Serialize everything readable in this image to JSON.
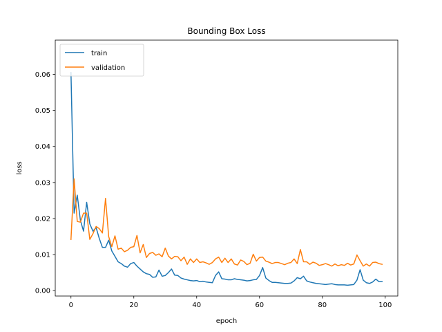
{
  "chart_data": {
    "type": "line",
    "title": "Bounding Box Loss",
    "xlabel": "epoch",
    "ylabel": "loss",
    "xlim": [
      -5,
      104
    ],
    "ylim": [
      -0.0015,
      0.0695
    ],
    "xticks": [
      0,
      20,
      40,
      60,
      80,
      100
    ],
    "yticks": [
      0.0,
      0.01,
      0.02,
      0.03,
      0.04,
      0.05,
      0.06
    ],
    "ytick_labels": [
      "0.00",
      "0.01",
      "0.02",
      "0.03",
      "0.04",
      "0.05",
      "0.06"
    ],
    "grid": false,
    "legend": "upper-left",
    "series": [
      {
        "name": "train",
        "color": "#1f77b4",
        "values": [
          0.0605,
          0.0215,
          0.0265,
          0.0195,
          0.0165,
          0.0245,
          0.0185,
          0.0165,
          0.0175,
          0.0145,
          0.012,
          0.012,
          0.014,
          0.011,
          0.0095,
          0.008,
          0.0075,
          0.0068,
          0.0065,
          0.0075,
          0.0078,
          0.0068,
          0.006,
          0.0052,
          0.0047,
          0.0045,
          0.0037,
          0.0038,
          0.0057,
          0.004,
          0.0042,
          0.005,
          0.006,
          0.0043,
          0.0042,
          0.0035,
          0.0032,
          0.003,
          0.0028,
          0.0027,
          0.0028,
          0.0025,
          0.0026,
          0.0024,
          0.0023,
          0.0022,
          0.0042,
          0.0052,
          0.0033,
          0.0032,
          0.003,
          0.003,
          0.0033,
          0.0031,
          0.003,
          0.0029,
          0.0027,
          0.0028,
          0.003,
          0.0031,
          0.0042,
          0.0064,
          0.0035,
          0.0028,
          0.0023,
          0.0023,
          0.0022,
          0.0021,
          0.002,
          0.002,
          0.0021,
          0.0027,
          0.0036,
          0.0033,
          0.004,
          0.0027,
          0.0024,
          0.0022,
          0.002,
          0.0019,
          0.0018,
          0.0017,
          0.0018,
          0.0019,
          0.0017,
          0.0016,
          0.0016,
          0.0016,
          0.0015,
          0.0016,
          0.0017,
          0.0029,
          0.0058,
          0.0029,
          0.0022,
          0.002,
          0.0024,
          0.0032,
          0.0025,
          0.0025
        ]
      },
      {
        "name": "validation",
        "color": "#ff7f0e",
        "values": [
          0.0142,
          0.031,
          0.0192,
          0.019,
          0.0215,
          0.0215,
          0.0142,
          0.0158,
          0.0178,
          0.0172,
          0.016,
          0.0256,
          0.015,
          0.0122,
          0.0152,
          0.0115,
          0.0118,
          0.0108,
          0.0112,
          0.012,
          0.0122,
          0.0153,
          0.0105,
          0.0128,
          0.0092,
          0.0103,
          0.0106,
          0.0098,
          0.0102,
          0.0094,
          0.0118,
          0.0096,
          0.0088,
          0.0095,
          0.0094,
          0.0083,
          0.0093,
          0.0073,
          0.0088,
          0.0078,
          0.0088,
          0.0078,
          0.008,
          0.0077,
          0.0073,
          0.0078,
          0.0088,
          0.0093,
          0.0078,
          0.009,
          0.0078,
          0.0088,
          0.0074,
          0.0071,
          0.0085,
          0.0081,
          0.0072,
          0.0076,
          0.0101,
          0.0082,
          0.0092,
          0.0093,
          0.0082,
          0.0079,
          0.0075,
          0.0078,
          0.0078,
          0.0075,
          0.0072,
          0.0076,
          0.0078,
          0.0088,
          0.0075,
          0.0114,
          0.008,
          0.008,
          0.0073,
          0.0079,
          0.0076,
          0.007,
          0.0072,
          0.0075,
          0.0072,
          0.0068,
          0.0074,
          0.0069,
          0.0072,
          0.007,
          0.0076,
          0.0071,
          0.0074,
          0.0099,
          0.0083,
          0.0068,
          0.0074,
          0.0068,
          0.0078,
          0.0079,
          0.0075,
          0.0073
        ]
      }
    ]
  }
}
